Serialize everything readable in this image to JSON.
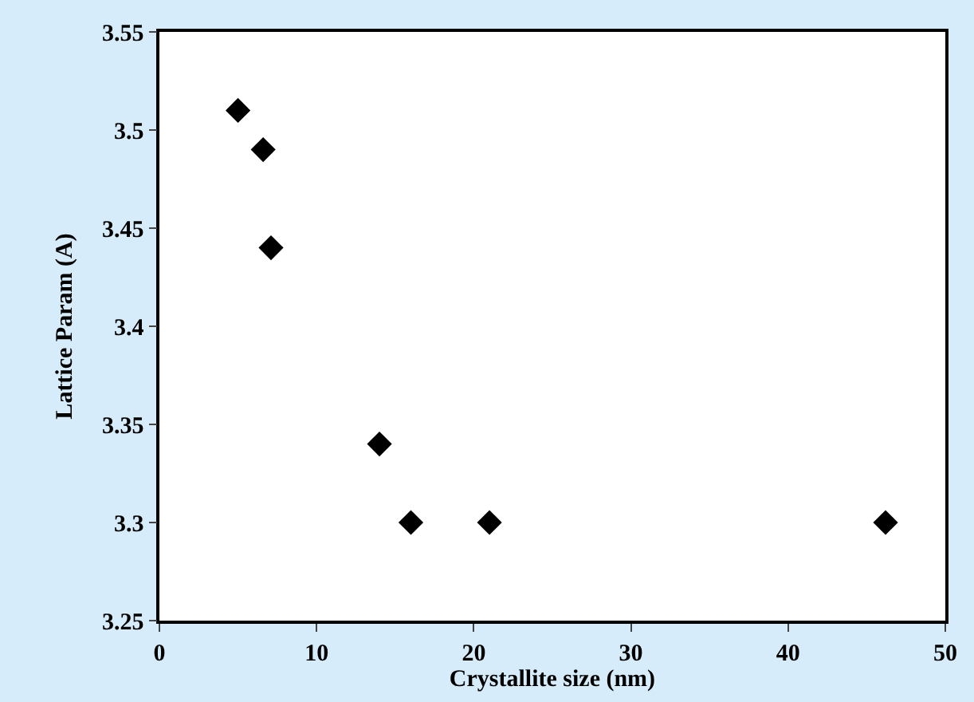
{
  "chart_data": {
    "type": "scatter",
    "xlabel": "Crystallite size (nm)",
    "ylabel": "Lattice Param (A)",
    "x": [
      5,
      6.6,
      7.1,
      14,
      16,
      21,
      46.2
    ],
    "series": [
      {
        "color": "#000000",
        "values": [
          3.51,
          3.49,
          3.44,
          3.34,
          3.3,
          3.3,
          3.3
        ]
      }
    ],
    "xlim": [
      0,
      50
    ],
    "xticks": [
      0,
      10,
      20,
      30,
      40,
      50
    ],
    "ylim": [
      3.25,
      3.55
    ],
    "yticks": [
      3.25,
      {
        "value": 3.3,
        "label": "3.3"
      },
      3.35,
      {
        "value": 3.4,
        "label": "3.4"
      },
      3.45,
      {
        "value": 3.5,
        "label": "3.5"
      },
      3.55
    ],
    "marker": "diamond"
  }
}
